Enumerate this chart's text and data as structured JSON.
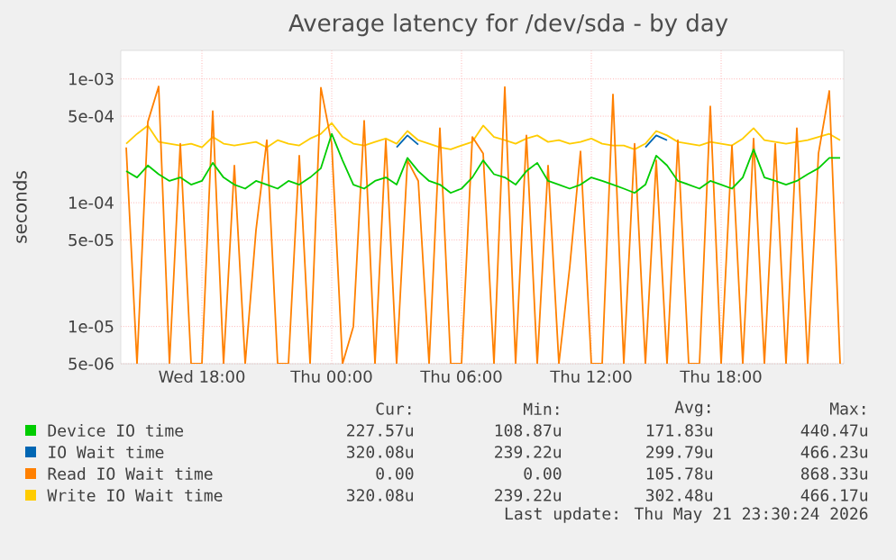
{
  "chart_data": {
    "type": "line",
    "title": "Average latency for /dev/sda - by day",
    "ylabel": "seconds",
    "log": "y",
    "grid": true,
    "legend": "bottom",
    "marker": "none",
    "line_style": "solid",
    "xlim": [
      "2026-05-20T14:15",
      "2026-05-21T23:40"
    ],
    "ylim": [
      5e-06,
      0.0017
    ],
    "xticks": [
      {
        "value": "2026-05-20T18:00",
        "label": "Wed 18:00"
      },
      {
        "value": "2026-05-21T00:00",
        "label": "Thu 00:00"
      },
      {
        "value": "2026-05-21T06:00",
        "label": "Thu 06:00"
      },
      {
        "value": "2026-05-21T12:00",
        "label": "Thu 12:00"
      },
      {
        "value": "2026-05-21T18:00",
        "label": "Thu 18:00"
      }
    ],
    "yticks": [
      {
        "value": 5e-06,
        "label": "5e-06"
      },
      {
        "value": 1e-05,
        "label": "1e-05"
      },
      {
        "value": 5e-05,
        "label": "5e-05"
      },
      {
        "value": 0.0001,
        "label": "1e-04"
      },
      {
        "value": 0.0005,
        "label": "5e-04"
      },
      {
        "value": 0.001,
        "label": "1e-03"
      }
    ],
    "x": [
      "2026-05-20T14:30",
      "2026-05-20T15:00",
      "2026-05-20T15:30",
      "2026-05-20T16:00",
      "2026-05-20T16:30",
      "2026-05-20T17:00",
      "2026-05-20T17:30",
      "2026-05-20T18:00",
      "2026-05-20T18:30",
      "2026-05-20T19:00",
      "2026-05-20T19:30",
      "2026-05-20T20:00",
      "2026-05-20T20:30",
      "2026-05-20T21:00",
      "2026-05-20T21:30",
      "2026-05-20T22:00",
      "2026-05-20T22:30",
      "2026-05-20T23:00",
      "2026-05-20T23:30",
      "2026-05-21T00:00",
      "2026-05-21T00:30",
      "2026-05-21T01:00",
      "2026-05-21T01:30",
      "2026-05-21T02:00",
      "2026-05-21T02:30",
      "2026-05-21T03:00",
      "2026-05-21T03:30",
      "2026-05-21T04:00",
      "2026-05-21T04:30",
      "2026-05-21T05:00",
      "2026-05-21T05:30",
      "2026-05-21T06:00",
      "2026-05-21T06:30",
      "2026-05-21T07:00",
      "2026-05-21T07:30",
      "2026-05-21T08:00",
      "2026-05-21T08:30",
      "2026-05-21T09:00",
      "2026-05-21T09:30",
      "2026-05-21T10:00",
      "2026-05-21T10:30",
      "2026-05-21T11:00",
      "2026-05-21T11:30",
      "2026-05-21T12:00",
      "2026-05-21T12:30",
      "2026-05-21T13:00",
      "2026-05-21T13:30",
      "2026-05-21T14:00",
      "2026-05-21T14:30",
      "2026-05-21T15:00",
      "2026-05-21T15:30",
      "2026-05-21T16:00",
      "2026-05-21T16:30",
      "2026-05-21T17:00",
      "2026-05-21T17:30",
      "2026-05-21T18:00",
      "2026-05-21T18:30",
      "2026-05-21T19:00",
      "2026-05-21T19:30",
      "2026-05-21T20:00",
      "2026-05-21T20:30",
      "2026-05-21T21:00",
      "2026-05-21T21:30",
      "2026-05-21T22:00",
      "2026-05-21T22:30",
      "2026-05-21T23:00",
      "2026-05-21T23:30"
    ],
    "series": [
      {
        "name": "Device IO time",
        "color": "#00cc00",
        "values": [
          0.00018,
          0.00016,
          0.0002,
          0.00017,
          0.00015,
          0.00016,
          0.00014,
          0.00015,
          0.00021,
          0.00016,
          0.00014,
          0.00013,
          0.00015,
          0.00014,
          0.00013,
          0.00015,
          0.00014,
          0.00016,
          0.00019,
          0.00036,
          0.00022,
          0.00014,
          0.00013,
          0.00015,
          0.00016,
          0.00014,
          0.00023,
          0.00018,
          0.00015,
          0.00014,
          0.00012,
          0.00013,
          0.00016,
          0.00022,
          0.00017,
          0.00016,
          0.00014,
          0.00018,
          0.00021,
          0.00015,
          0.00014,
          0.00013,
          0.00014,
          0.00016,
          0.00015,
          0.00014,
          0.00013,
          0.00012,
          0.00014,
          0.00024,
          0.0002,
          0.00015,
          0.00014,
          0.00013,
          0.00015,
          0.00014,
          0.00013,
          0.00016,
          0.00027,
          0.00016,
          0.00015,
          0.00014,
          0.00015,
          0.00017,
          0.00019,
          0.00023,
          0.00023
        ]
      },
      {
        "name": "IO Wait time",
        "color": "#0066b3",
        "values": [
          null,
          null,
          null,
          null,
          null,
          null,
          null,
          null,
          null,
          null,
          null,
          null,
          null,
          null,
          null,
          null,
          null,
          null,
          null,
          null,
          null,
          null,
          null,
          null,
          null,
          0.00028,
          0.00035,
          0.000295,
          null,
          null,
          null,
          null,
          null,
          null,
          null,
          null,
          null,
          null,
          null,
          null,
          null,
          null,
          null,
          null,
          null,
          null,
          null,
          null,
          0.00028,
          0.00035,
          0.00032,
          null,
          null,
          null,
          null,
          null,
          null,
          null,
          null,
          null,
          null,
          null,
          null,
          null,
          null,
          null,
          null
        ]
      },
      {
        "name": "Read IO Wait time",
        "color": "#ff8000",
        "values": [
          0.00028,
          5e-06,
          0.00045,
          0.00087,
          5e-06,
          0.0003,
          5e-06,
          5e-06,
          0.00055,
          5e-06,
          0.0002,
          5e-06,
          6e-05,
          0.00032,
          5e-06,
          5e-06,
          0.00024,
          5e-06,
          0.00085,
          0.0003,
          5e-06,
          1e-05,
          0.00046,
          5e-06,
          0.00032,
          5e-06,
          0.00022,
          0.00015,
          5e-06,
          0.0004,
          5e-06,
          5e-06,
          0.00034,
          0.00025,
          5e-06,
          0.00086,
          5e-06,
          0.00035,
          5e-06,
          0.0002,
          5e-06,
          3e-05,
          0.00026,
          5e-06,
          5e-06,
          0.00075,
          5e-06,
          0.0003,
          5e-06,
          0.00022,
          5e-06,
          0.00032,
          5e-06,
          5e-06,
          0.0006,
          5e-06,
          0.00029,
          5e-06,
          0.00033,
          5e-06,
          0.0003,
          5e-06,
          0.0004,
          5e-06,
          0.00025,
          0.0008,
          5e-06
        ]
      },
      {
        "name": "Write IO Wait time",
        "color": "#ffcc00",
        "values": [
          0.0003,
          0.00036,
          0.00042,
          0.00031,
          0.0003,
          0.00029,
          0.0003,
          0.00028,
          0.00034,
          0.0003,
          0.00029,
          0.0003,
          0.00031,
          0.00028,
          0.00032,
          0.0003,
          0.00029,
          0.00033,
          0.00036,
          0.00044,
          0.00034,
          0.0003,
          0.00029,
          0.00031,
          0.00033,
          0.0003,
          0.00038,
          0.00032,
          0.0003,
          0.00028,
          0.00027,
          0.00029,
          0.00031,
          0.00042,
          0.00034,
          0.00032,
          0.0003,
          0.00033,
          0.00035,
          0.00031,
          0.00032,
          0.0003,
          0.00031,
          0.00033,
          0.0003,
          0.00029,
          0.00029,
          0.00027,
          0.0003,
          0.00038,
          0.00035,
          0.00031,
          0.0003,
          0.00029,
          0.00031,
          0.0003,
          0.00029,
          0.00033,
          0.0004,
          0.00032,
          0.00031,
          0.0003,
          0.00031,
          0.00032,
          0.00034,
          0.00036,
          0.00032
        ]
      }
    ],
    "annotations": [
      "Cur:",
      "Min:",
      "Avg:",
      "Max:",
      "227.57u",
      "108.87u",
      "171.83u",
      "440.47u",
      "320.08u",
      "239.22u",
      "299.79u",
      "466.23u",
      "0.00",
      "0.00",
      "105.78u",
      "868.33u",
      "320.08u",
      "239.22u",
      "302.48u",
      "466.17u",
      "Last update: Thu May 21 23:30:24 2026"
    ]
  }
}
